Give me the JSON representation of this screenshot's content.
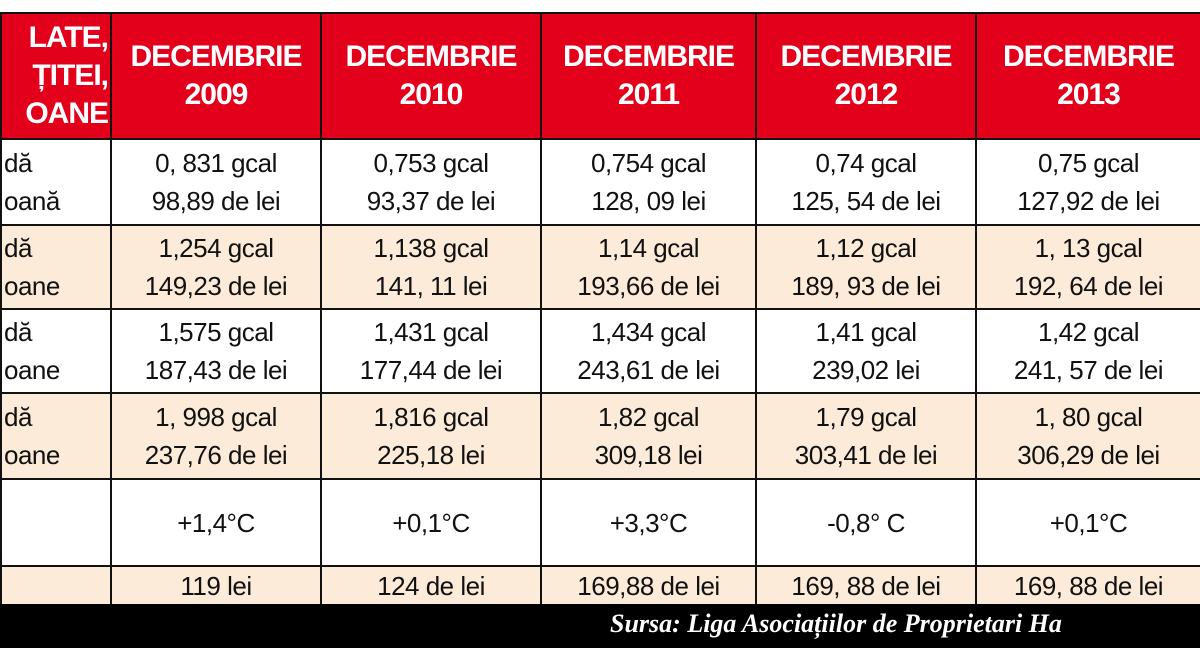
{
  "header": {
    "label_lines": [
      "LATE,",
      "ȚITEI,",
      "OANE"
    ],
    "columns": [
      {
        "month": "DECEMBRIE",
        "year": "2009"
      },
      {
        "month": "DECEMBRIE",
        "year": "2010"
      },
      {
        "month": "DECEMBRIE",
        "year": "2011"
      },
      {
        "month": "DECEMBRIE",
        "year": "2012"
      },
      {
        "month": "DECEMBRIE",
        "year": "2013"
      }
    ]
  },
  "rows": [
    {
      "label": [
        "dă",
        "oană"
      ],
      "cells": [
        [
          "0, 831 gcal",
          "98,89 de lei"
        ],
        [
          "0,753 gcal",
          "93,37 de lei"
        ],
        [
          "0,754 gcal",
          "128, 09 lei"
        ],
        [
          "0,74 gcal",
          "125, 54 de lei"
        ],
        [
          "0,75 gcal",
          "127,92 de lei"
        ]
      ]
    },
    {
      "label": [
        "dă",
        "oane"
      ],
      "cells": [
        [
          "1,254 gcal",
          "149,23 de lei"
        ],
        [
          "1,138 gcal",
          "141, 11 lei"
        ],
        [
          "1,14 gcal",
          "193,66 de lei"
        ],
        [
          "1,12 gcal",
          "189, 93 de lei"
        ],
        [
          "1, 13 gcal",
          "192, 64 de lei"
        ]
      ]
    },
    {
      "label": [
        "dă",
        "oane"
      ],
      "cells": [
        [
          "1,575 gcal",
          "187,43 de lei"
        ],
        [
          "1,431 gcal",
          "177,44 de lei"
        ],
        [
          "1,434 gcal",
          "243,61 de lei"
        ],
        [
          "1,41 gcal",
          "239,02 lei"
        ],
        [
          "1,42 gcal",
          "241, 57 de lei"
        ]
      ]
    },
    {
      "label": [
        "dă",
        "oane"
      ],
      "cells": [
        [
          "1, 998 gcal",
          "237,76 de lei"
        ],
        [
          "1,816 gcal",
          "225,18 lei"
        ],
        [
          "1,82 gcal",
          "309,18 lei"
        ],
        [
          "1,79 gcal",
          "303,41 de lei"
        ],
        [
          "1, 80 gcal",
          "306,29 de lei"
        ]
      ]
    },
    {
      "label": [
        ""
      ],
      "cells": [
        [
          "+1,4°C"
        ],
        [
          "+0,1°C"
        ],
        [
          "+3,3°C"
        ],
        [
          "-0,8° C"
        ],
        [
          "+0,1°C"
        ]
      ]
    },
    {
      "label": [
        ""
      ],
      "cells": [
        [
          "119 lei"
        ],
        [
          "124 de lei"
        ],
        [
          "169,88 de lei"
        ],
        [
          "169, 88 de lei"
        ],
        [
          "169, 88 de lei"
        ]
      ]
    }
  ],
  "footer": {
    "source": "Sursa: Liga Asociațiilor de Proprietari Ha"
  },
  "colors": {
    "header_red": "#e3001b",
    "peach": "#fdebd9",
    "footer_black": "#000000"
  }
}
